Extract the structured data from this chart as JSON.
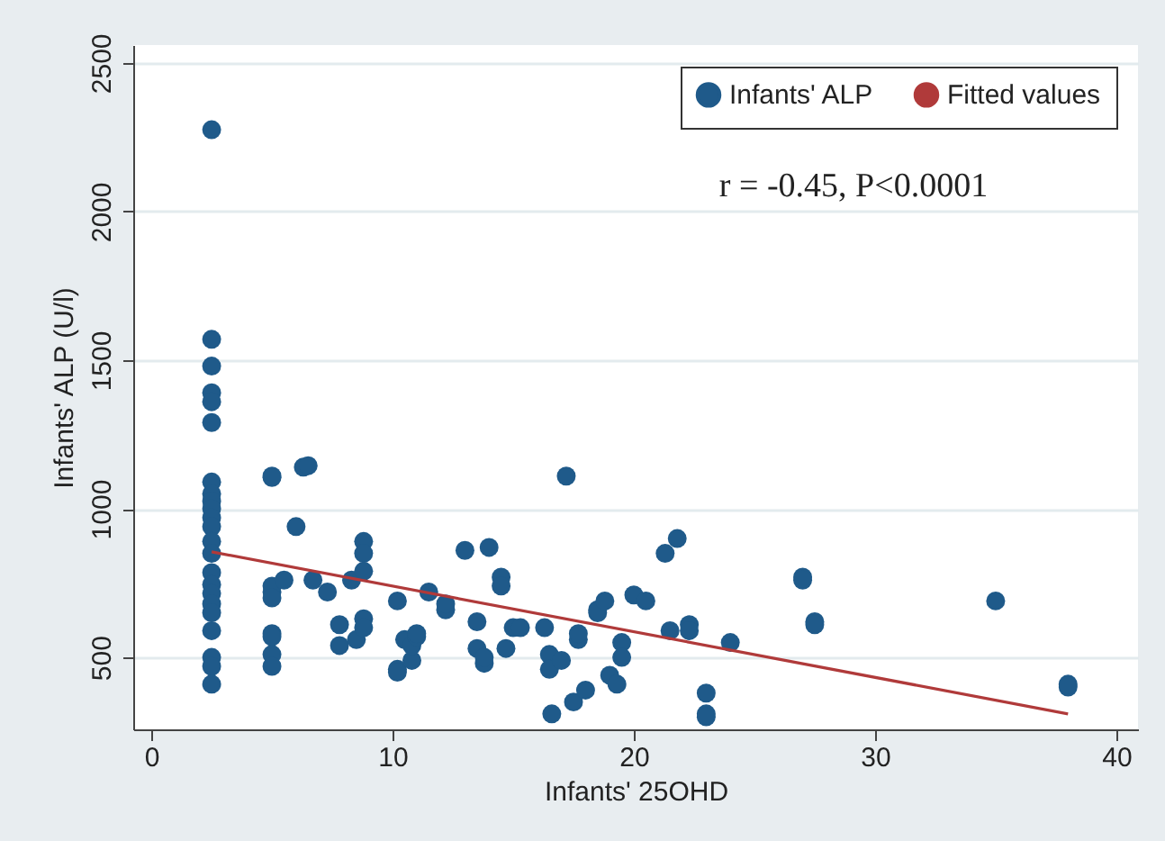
{
  "chart_data": {
    "type": "scatter",
    "xlabel": "Infants' 25OHD",
    "ylabel": "Infants' ALP (U/l)",
    "xlim": [
      -0.75,
      40.9
    ],
    "ylim": [
      258,
      2560
    ],
    "xticks": [
      0,
      10,
      20,
      30,
      40
    ],
    "yticks": [
      500,
      1000,
      1500,
      2000,
      2500
    ],
    "grid": "y",
    "legend": "top right",
    "annotations": [
      "r = -0.45, P<0.0001"
    ],
    "series": [
      {
        "name": "Infants' ALP",
        "marker": "circle",
        "color": "#1f5a8a",
        "x": [
          2.5,
          2.5,
          2.5,
          2.5,
          2.5,
          2.5,
          2.5,
          2.5,
          2.5,
          2.5,
          2.5,
          2.5,
          2.5,
          2.5,
          2.5,
          2.5,
          2.5,
          2.5,
          2.5,
          2.5,
          2.5,
          2.5,
          2.5,
          5,
          5,
          5,
          5,
          5,
          5,
          5,
          5,
          5,
          5.5,
          6,
          6.3,
          6.5,
          6.7,
          7.3,
          7.8,
          7.8,
          8.3,
          8.5,
          8.8,
          8.8,
          8.8,
          8.8,
          8.8,
          10.2,
          10.2,
          10.2,
          10.5,
          10.8,
          10.8,
          11,
          11,
          11.5,
          12.2,
          12.2,
          13,
          13.5,
          13.5,
          13.8,
          13.8,
          14,
          14.5,
          14.5,
          14.7,
          15,
          15.3,
          16.3,
          16.5,
          16.5,
          16.6,
          17,
          17.2,
          17.5,
          17.7,
          17.7,
          18,
          18.5,
          18.5,
          18.8,
          19,
          19.3,
          19.5,
          19.5,
          20,
          20.5,
          21.3,
          21.5,
          21.8,
          22.3,
          22.3,
          23,
          23,
          23,
          24,
          27,
          27,
          27.5,
          27.5,
          35,
          38,
          38
        ],
        "values": [
          2275,
          1570,
          1480,
          1390,
          1360,
          1290,
          1090,
          1050,
          1025,
          1000,
          970,
          940,
          890,
          850,
          785,
          745,
          715,
          680,
          650,
          590,
          500,
          470,
          410,
          1105,
          1110,
          720,
          740,
          700,
          580,
          570,
          510,
          470,
          760,
          940,
          1140,
          1145,
          760,
          720,
          540,
          610,
          760,
          560,
          890,
          850,
          790,
          630,
          600,
          690,
          460,
          450,
          560,
          490,
          540,
          570,
          580,
          720,
          660,
          680,
          860,
          620,
          530,
          480,
          500,
          870,
          770,
          740,
          530,
          600,
          600,
          600,
          510,
          460,
          310,
          490,
          1110,
          350,
          560,
          580,
          390,
          650,
          660,
          690,
          440,
          410,
          550,
          500,
          710,
          690,
          850,
          590,
          900,
          610,
          590,
          380,
          310,
          300,
          550,
          770,
          760,
          620,
          610,
          690,
          400,
          410
        ]
      },
      {
        "name": "Fitted values",
        "type": "line",
        "marker": "none",
        "color": "#b03a3a",
        "x": [
          2.5,
          38
        ],
        "values": [
          855,
          310
        ]
      }
    ]
  }
}
